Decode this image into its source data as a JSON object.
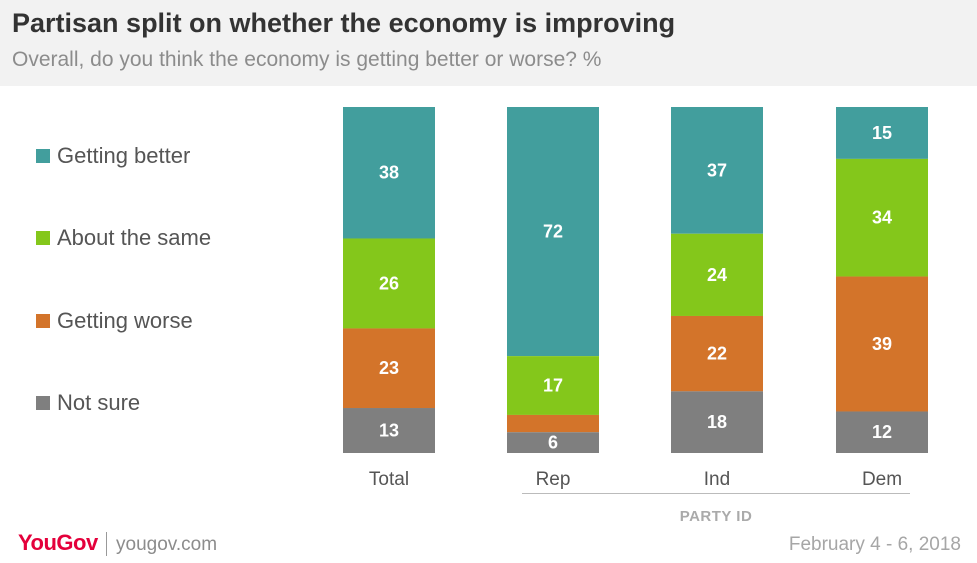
{
  "header": {
    "title": "Partisan split on whether the economy is improving",
    "subtitle": "Overall, do you think the economy is getting better or worse? %"
  },
  "chart_data": {
    "type": "bar",
    "stacked": true,
    "categories": [
      "Total",
      "Rep",
      "Ind",
      "Dem"
    ],
    "series": [
      {
        "name": "Getting better",
        "color": "#429e9d",
        "values": [
          38,
          72,
          37,
          15
        ]
      },
      {
        "name": "About the same",
        "color": "#84c71b",
        "values": [
          26,
          17,
          24,
          34
        ]
      },
      {
        "name": "Getting worse",
        "color": "#d3742a",
        "values": [
          23,
          5,
          22,
          39
        ]
      },
      {
        "name": "Not sure",
        "color": "#7f7f7f",
        "values": [
          13,
          6,
          18,
          12
        ]
      }
    ],
    "data_labels": [
      [
        "38",
        "72",
        "37",
        "15"
      ],
      [
        "26",
        "17",
        "24",
        "34"
      ],
      [
        "23",
        "",
        "22",
        "39"
      ],
      [
        "13",
        "6",
        "18",
        "12"
      ]
    ],
    "ylim": [
      0,
      100
    ],
    "grid": false,
    "legend_position": "left",
    "group_label": "PARTY ID"
  },
  "footer": {
    "logo": "YouGov",
    "site": "yougov.com",
    "date": "February 4 - 6, 2018"
  }
}
